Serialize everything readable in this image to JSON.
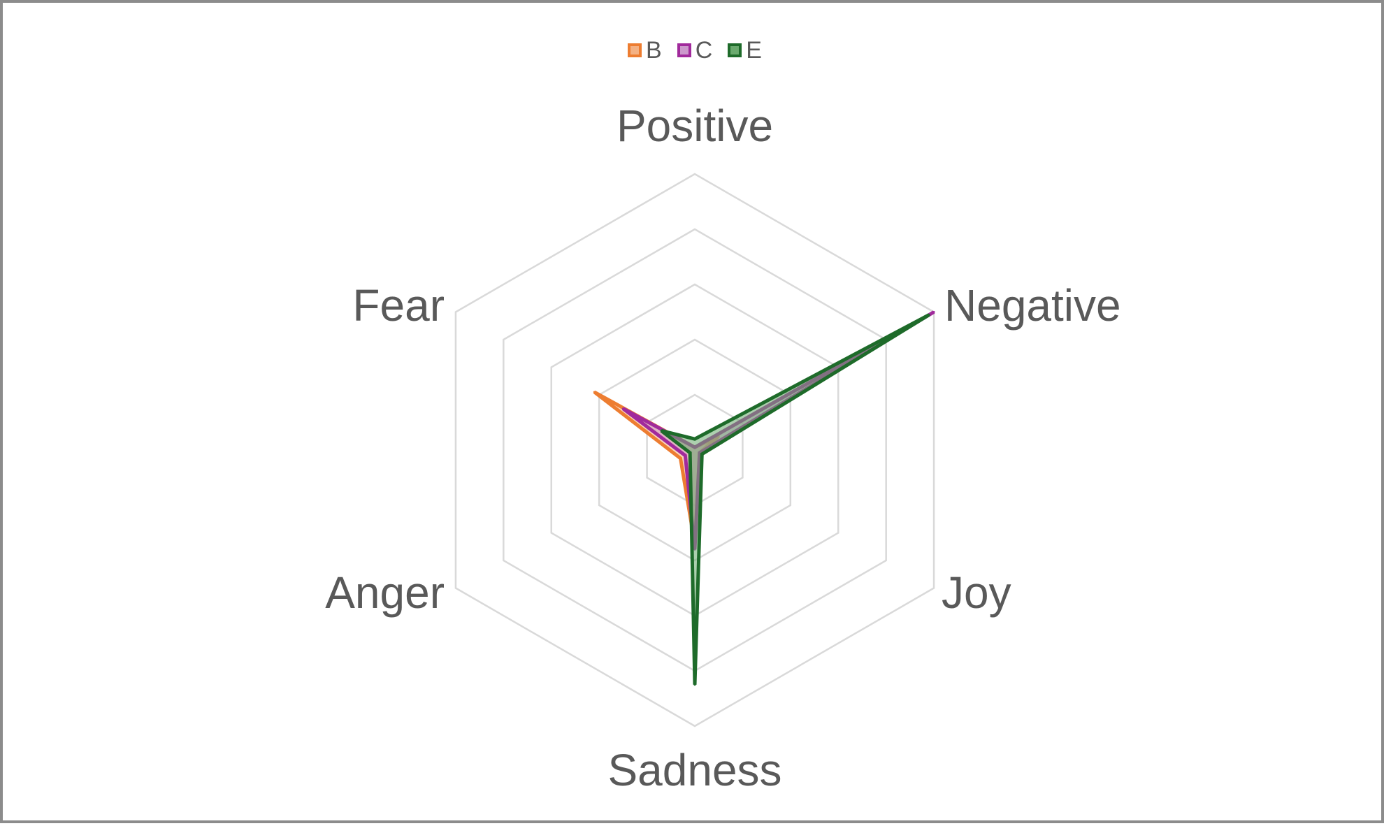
{
  "chart_data": {
    "type": "radar",
    "title": "",
    "categories": [
      "Positive",
      "Negative",
      "Joy",
      "Sadness",
      "Anger",
      "Fear"
    ],
    "rlim": [
      0,
      5
    ],
    "rings": 5,
    "grid": true,
    "legend": "top-center",
    "series": [
      {
        "name": "B",
        "color": "#ed7d31",
        "fill": "#f4b183",
        "values": [
          0.05,
          0.5,
          0.1,
          1.7,
          0.3,
          2.1
        ]
      },
      {
        "name": "C",
        "color": "#a12a9c",
        "fill": "#cc99cc",
        "values": [
          0.05,
          5.0,
          0.1,
          1.8,
          0.2,
          1.5
        ]
      },
      {
        "name": "E",
        "color": "#1e6b2a",
        "fill": "#6aaa6e",
        "values": [
          0.2,
          4.9,
          0.15,
          4.25,
          0.1,
          0.7
        ]
      }
    ]
  }
}
